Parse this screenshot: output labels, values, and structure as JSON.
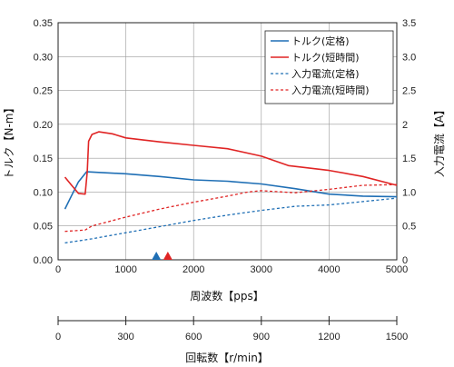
{
  "chart_data": {
    "type": "line",
    "xlabel": "周波数【pps】",
    "ylabel_left": "トルク【N-m】",
    "ylabel_right": "入力電流【A】",
    "xlim": [
      0,
      5000
    ],
    "ylim_left": [
      0,
      0.35
    ],
    "ylim_right": [
      0,
      3.5
    ],
    "x_ticks": [
      "0",
      "1000",
      "2000",
      "3000",
      "4000",
      "5000"
    ],
    "y_left_ticks": [
      "0.00",
      "0.05",
      "0.10",
      "0.15",
      "0.20",
      "0.25",
      "0.30",
      "0.35"
    ],
    "y_right_ticks": [
      "0",
      "0.5",
      "1.0",
      "1.5",
      "2",
      "2.5",
      "3.0",
      "3.5"
    ],
    "grid": true,
    "legend_position": "top-right",
    "series": [
      {
        "name": "トルク(定格)",
        "axis": "left",
        "color": "#1f6fb5",
        "style": "solid",
        "x": [
          100,
          200,
          300,
          420,
          600,
          1000,
          1500,
          2000,
          2500,
          3000,
          3500,
          4000,
          4500,
          5000
        ],
        "y": [
          0.075,
          0.095,
          0.115,
          0.13,
          0.129,
          0.127,
          0.123,
          0.118,
          0.116,
          0.112,
          0.105,
          0.097,
          0.094,
          0.093
        ]
      },
      {
        "name": "トルク(短時間)",
        "axis": "left",
        "color": "#e02424",
        "style": "solid",
        "x": [
          100,
          200,
          300,
          400,
          430,
          450,
          500,
          600,
          800,
          1000,
          1500,
          2000,
          2500,
          3000,
          3400,
          4000,
          4500,
          5000
        ],
        "y": [
          0.122,
          0.11,
          0.098,
          0.097,
          0.13,
          0.175,
          0.185,
          0.189,
          0.186,
          0.18,
          0.174,
          0.169,
          0.164,
          0.153,
          0.139,
          0.132,
          0.123,
          0.11
        ]
      },
      {
        "name": "入力電流(定格)",
        "axis": "right",
        "color": "#1f6fb5",
        "style": "dashed",
        "x": [
          100,
          500,
          1000,
          1500,
          2000,
          2500,
          3000,
          3500,
          4000,
          4500,
          5000
        ],
        "y": [
          0.25,
          0.31,
          0.4,
          0.49,
          0.58,
          0.66,
          0.73,
          0.79,
          0.81,
          0.86,
          0.91
        ]
      },
      {
        "name": "入力電流(短時間)",
        "axis": "right",
        "color": "#e02424",
        "style": "dashed",
        "x": [
          100,
          400,
          500,
          1000,
          1500,
          2000,
          2500,
          2800,
          3000,
          3500,
          4000,
          4500,
          5000
        ],
        "y": [
          0.42,
          0.44,
          0.5,
          0.63,
          0.75,
          0.85,
          0.94,
          1.0,
          1.02,
          0.99,
          1.04,
          1.1,
          1.11
        ]
      }
    ],
    "markers": [
      {
        "x": 1450,
        "color": "#1f6fb5"
      },
      {
        "x": 1620,
        "color": "#e02424"
      }
    ],
    "secondary_axis": {
      "label": "回転数【r/min】",
      "ticks": [
        "0",
        "300",
        "600",
        "900",
        "1200",
        "1500"
      ],
      "range": [
        0,
        1500
      ]
    }
  }
}
